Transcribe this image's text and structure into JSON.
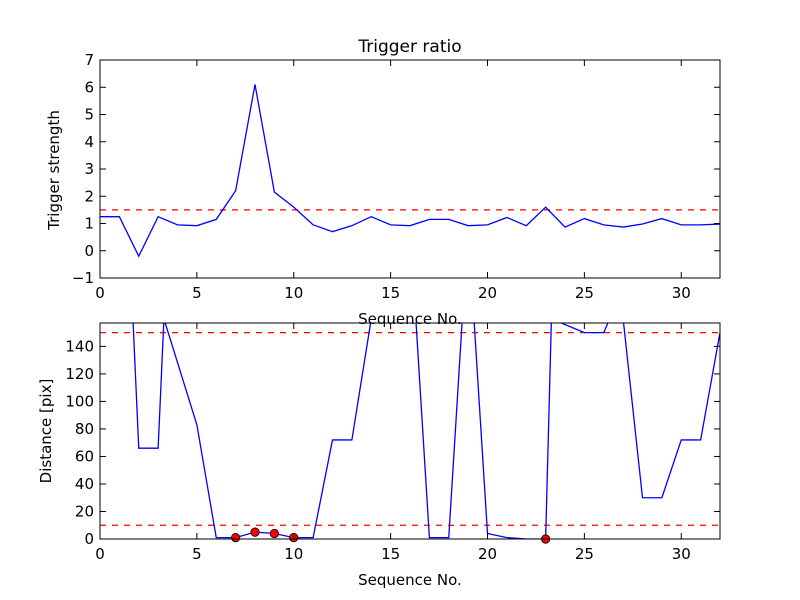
{
  "chart_data": [
    {
      "type": "line",
      "title": "Trigger ratio",
      "xlabel": "Sequence No.",
      "ylabel": "Trigger strength",
      "xlim": [
        0,
        32
      ],
      "ylim": [
        -1,
        7
      ],
      "xticks": [
        0,
        5,
        10,
        15,
        20,
        25,
        30
      ],
      "yticks": [
        -1,
        0,
        1,
        2,
        3,
        4,
        5,
        6,
        7
      ],
      "ytick_labels": [
        "−1",
        "0",
        "1",
        "2",
        "3",
        "4",
        "5",
        "6",
        "7"
      ],
      "grid": false,
      "threshold": {
        "value": 1.5,
        "color": "#ff0000",
        "style": "dashed"
      },
      "series": [
        {
          "color": "#0000ff",
          "x": [
            0,
            1,
            2,
            3,
            4,
            5,
            6,
            7,
            8,
            9,
            10,
            11,
            12,
            13,
            14,
            15,
            16,
            17,
            18,
            19,
            20,
            21,
            22,
            23,
            24,
            25,
            26,
            27,
            28,
            29,
            30,
            31,
            32
          ],
          "y": [
            1.25,
            1.25,
            -0.2,
            1.25,
            0.95,
            0.92,
            1.15,
            2.2,
            6.1,
            2.15,
            1.6,
            0.95,
            0.7,
            0.92,
            1.25,
            0.95,
            0.92,
            1.15,
            1.15,
            0.92,
            0.95,
            1.22,
            0.92,
            1.6,
            0.87,
            1.18,
            0.95,
            0.87,
            0.98,
            1.18,
            0.95,
            0.95,
            0.98
          ]
        }
      ]
    },
    {
      "type": "line",
      "title": "",
      "xlabel": "Sequence No.",
      "ylabel": "Distance [pix]",
      "xlim": [
        0,
        32
      ],
      "ylim": [
        0,
        157
      ],
      "xticks": [
        0,
        5,
        10,
        15,
        20,
        25,
        30
      ],
      "yticks": [
        0,
        20,
        40,
        60,
        80,
        100,
        120,
        140
      ],
      "grid": false,
      "thresholds": [
        {
          "value": 150,
          "color": "#ff0000",
          "style": "dashed"
        },
        {
          "value": 10,
          "color": "#ff0000",
          "style": "dashed"
        }
      ],
      "series": [
        {
          "color": "#0000ff",
          "x": [
            1.7,
            2,
            3,
            3.3,
            5,
            6,
            7,
            8,
            9,
            10,
            11,
            12,
            13,
            14,
            16.3,
            17,
            18,
            18.7,
            19.3,
            20,
            21,
            22,
            23,
            23.3,
            25,
            26,
            26.3,
            27,
            28,
            29,
            30,
            31,
            32
          ],
          "y": [
            160,
            66,
            66,
            160,
            83,
            1,
            1,
            5,
            4,
            1,
            1,
            72,
            72,
            160,
            160,
            1,
            1,
            160,
            160,
            4,
            1,
            0,
            0,
            160,
            150,
            150,
            160,
            160,
            30,
            30,
            72,
            72,
            150
          ]
        }
      ],
      "markers": {
        "color": "#ff0000",
        "edge_color": "#000000",
        "points": [
          {
            "x": 7,
            "y": 1
          },
          {
            "x": 8,
            "y": 5
          },
          {
            "x": 9,
            "y": 4
          },
          {
            "x": 10,
            "y": 1
          },
          {
            "x": 23,
            "y": 0
          }
        ]
      }
    }
  ]
}
